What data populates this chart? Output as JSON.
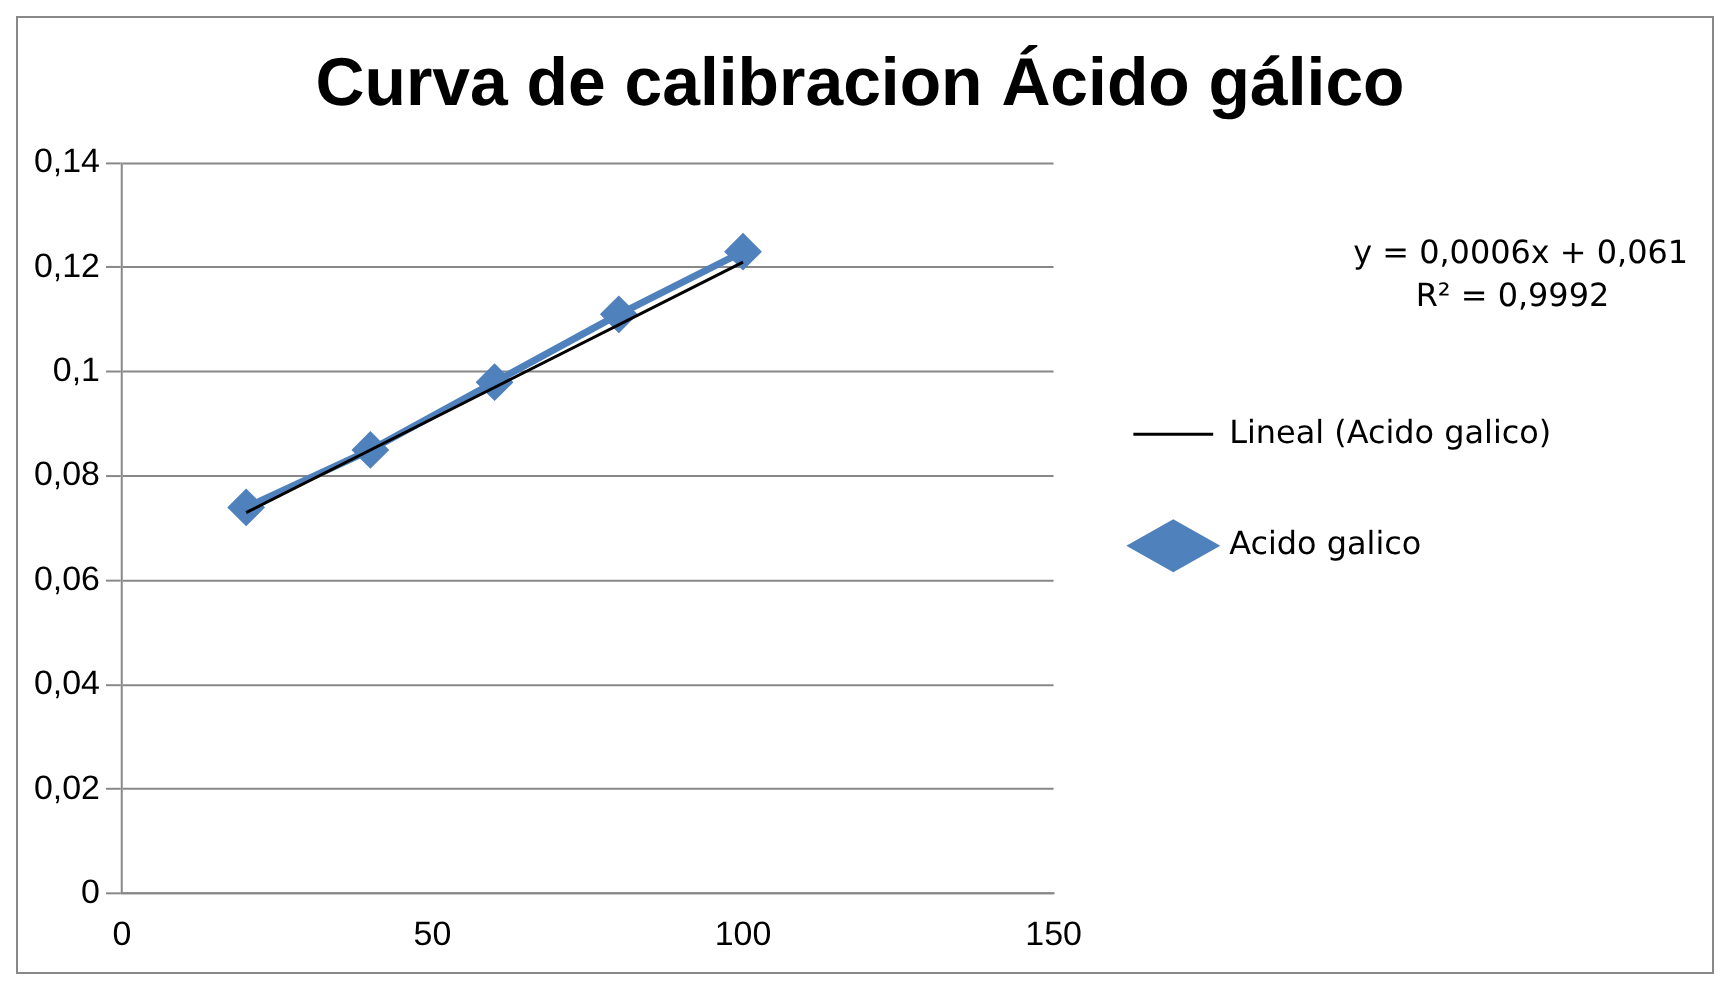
{
  "chart_data": {
    "type": "scatter",
    "title": "Curva de calibracion Ácido gálico",
    "annotations": [
      "y = 0,0006x + 0,061\nR² = 0,9992"
    ],
    "series": [
      {
        "name": "Acido galico",
        "type": "line",
        "color": "#4f81bd",
        "marker": "diamond",
        "x": [
          20,
          40,
          60,
          80,
          100
        ],
        "values": [
          0.074,
          0.085,
          0.098,
          0.111,
          0.123
        ]
      },
      {
        "name": "Lineal (Acido galico)",
        "type": "line",
        "color": "#000000",
        "marker": "none",
        "x": [
          20,
          100
        ],
        "values": [
          0.073,
          0.121
        ]
      }
    ],
    "xlim": [
      0,
      150
    ],
    "xticks": [
      0,
      50,
      100,
      150
    ],
    "ylim": [
      0,
      0.14
    ],
    "yticks": [
      0,
      {
        "value": 0.02,
        "label": "0,02"
      },
      {
        "value": 0.04,
        "label": "0,04"
      },
      {
        "value": 0.06,
        "label": "0,06"
      },
      {
        "value": 0.08,
        "label": "0,08"
      },
      {
        "value": 0.1,
        "label": "0,1"
      },
      {
        "value": 0.12,
        "label": "0,12"
      },
      {
        "value": 0.14,
        "label": "0,14"
      }
    ],
    "grid": "y",
    "legend": "right"
  }
}
